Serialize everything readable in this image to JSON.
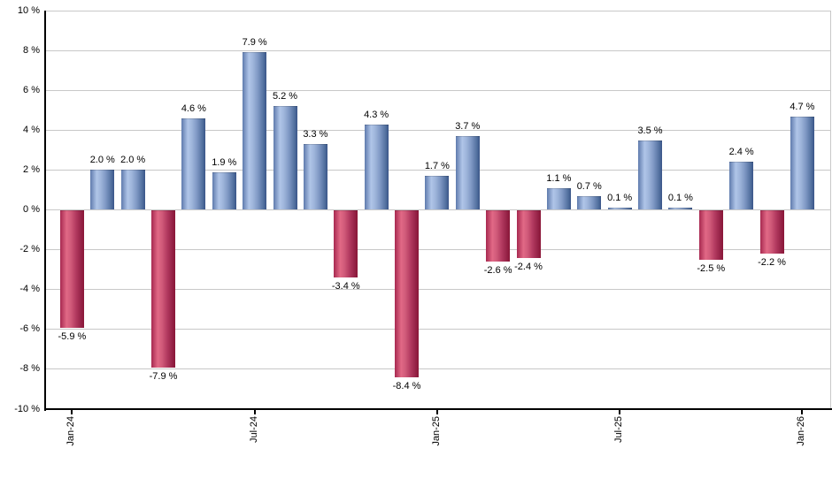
{
  "chart_data": {
    "type": "bar",
    "title": "",
    "xlabel": "",
    "ylabel": "",
    "ylim": [
      -10,
      10
    ],
    "grid": true,
    "legend": false,
    "y_tick_labels": [
      "10 %",
      "8 %",
      "6 %",
      "4 %",
      "2 %",
      "0 %",
      "-2 %",
      "-4 %",
      "-6 %",
      "-8 %",
      "-10 %"
    ],
    "y_tick_values": [
      10,
      8,
      6,
      4,
      2,
      0,
      -2,
      -4,
      -6,
      -8,
      -10
    ],
    "x_tick_labels": [
      "Jan-24",
      "Jul-24",
      "Jan-25",
      "Jul-25",
      "Jan-26"
    ],
    "x_tick_bar_indices": [
      0,
      6,
      12,
      18,
      24
    ],
    "values": [
      -5.9,
      2.0,
      2.0,
      -7.9,
      4.6,
      1.9,
      7.9,
      5.2,
      3.3,
      -3.4,
      4.3,
      -8.4,
      1.7,
      3.7,
      -2.6,
      -2.4,
      1.1,
      0.7,
      0.1,
      3.5,
      0.1,
      -2.5,
      2.4,
      -2.2,
      4.7
    ],
    "bar_labels": [
      "-5.9 %",
      "2.0 %",
      "2.0 %",
      "-7.9 %",
      "4.6 %",
      "1.9 %",
      "7.9 %",
      "5.2 %",
      "3.3 %",
      "-3.4 %",
      "4.3 %",
      "-8.4 %",
      "1.7 %",
      "3.7 %",
      "-2.6 %",
      "-2.4 %",
      "1.1 %",
      "0.7 %",
      "0.1 %",
      "3.5 %",
      "0.1 %",
      "-2.5 %",
      "2.4 %",
      "-2.2 %",
      "4.7 %"
    ],
    "colors": {
      "positive_bar": "#a9bfe4",
      "negative_bar": "#d64d73",
      "gridline": "#c8c8c8",
      "axis": "#000000",
      "label_text": "#000000",
      "background": "#ffffff"
    }
  }
}
